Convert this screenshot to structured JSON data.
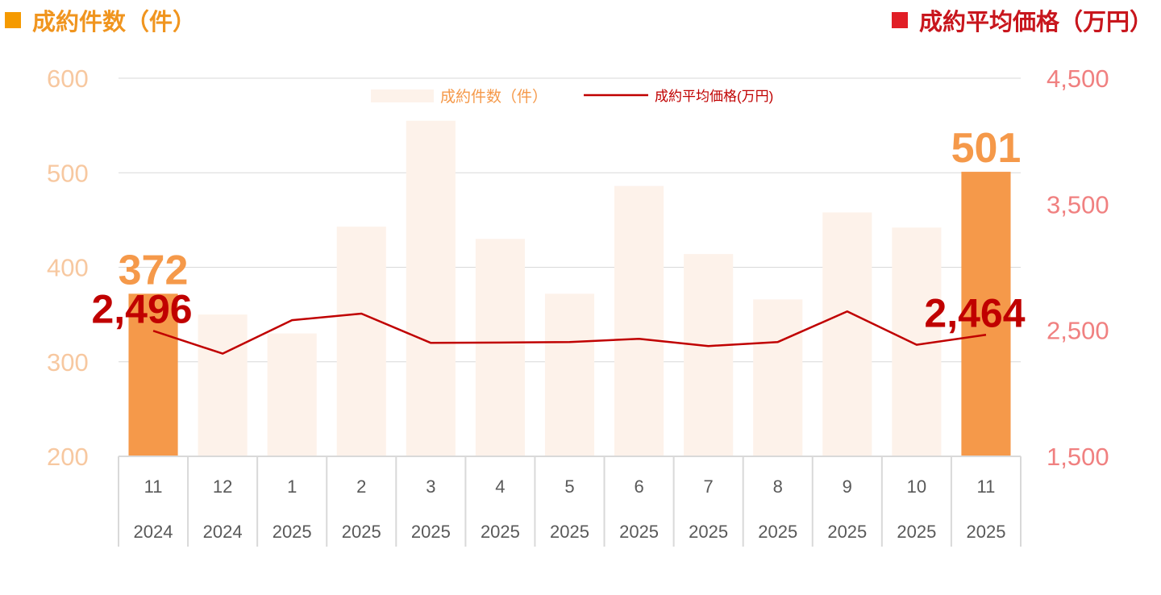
{
  "header": {
    "left_title": "成約件数（件）",
    "right_title": "成約平均価格（万円）"
  },
  "colors": {
    "bar_normal": "#fdf2ea",
    "bar_highlight": "#f5994a",
    "line": "#c00000",
    "left_axis_text": "#f7c8a0",
    "right_axis_text": "#f08080",
    "left_label_text": "#f5994a",
    "right_label_text": "#c00000",
    "grid": "#d9d9d9"
  },
  "chart_data": {
    "type": "bar",
    "categories": [
      {
        "month": "11",
        "year": "2024"
      },
      {
        "month": "12",
        "year": "2024"
      },
      {
        "month": "1",
        "year": "2025"
      },
      {
        "month": "2",
        "year": "2025"
      },
      {
        "month": "3",
        "year": "2025"
      },
      {
        "month": "4",
        "year": "2025"
      },
      {
        "month": "5",
        "year": "2025"
      },
      {
        "month": "6",
        "year": "2025"
      },
      {
        "month": "7",
        "year": "2025"
      },
      {
        "month": "8",
        "year": "2025"
      },
      {
        "month": "9",
        "year": "2025"
      },
      {
        "month": "10",
        "year": "2025"
      },
      {
        "month": "11",
        "year": "2025"
      }
    ],
    "series": [
      {
        "name": "成約件数（件）",
        "type": "bar",
        "axis": "left",
        "values": [
          372,
          350,
          330,
          443,
          555,
          430,
          372,
          486,
          414,
          366,
          458,
          442,
          501
        ],
        "highlight": [
          true,
          false,
          false,
          false,
          false,
          false,
          false,
          false,
          false,
          false,
          false,
          false,
          true
        ]
      },
      {
        "name": "成約平均価格(万円)",
        "type": "line",
        "axis": "right",
        "values": [
          2496,
          2315,
          2580,
          2632,
          2400,
          2403,
          2407,
          2432,
          2375,
          2407,
          2650,
          2385,
          2464
        ]
      }
    ],
    "left_axis": {
      "ylim": [
        200,
        600
      ],
      "ticks": [
        "200",
        "300",
        "400",
        "500",
        "600"
      ]
    },
    "right_axis": {
      "ylim": [
        1500,
        4500
      ],
      "ticks": [
        "1,500",
        "2,500",
        "3,500",
        "4,500"
      ]
    },
    "data_labels": [
      {
        "series": 0,
        "index": 0,
        "text": "372"
      },
      {
        "series": 0,
        "index": 12,
        "text": "501"
      },
      {
        "series": 1,
        "index": 0,
        "text": "2,496"
      },
      {
        "series": 1,
        "index": 12,
        "text": "2,464"
      }
    ],
    "legend": {
      "position": "top-center",
      "bar_label": "成約件数（件）",
      "line_label": "成約平均価格(万円)"
    },
    "grid": true
  }
}
